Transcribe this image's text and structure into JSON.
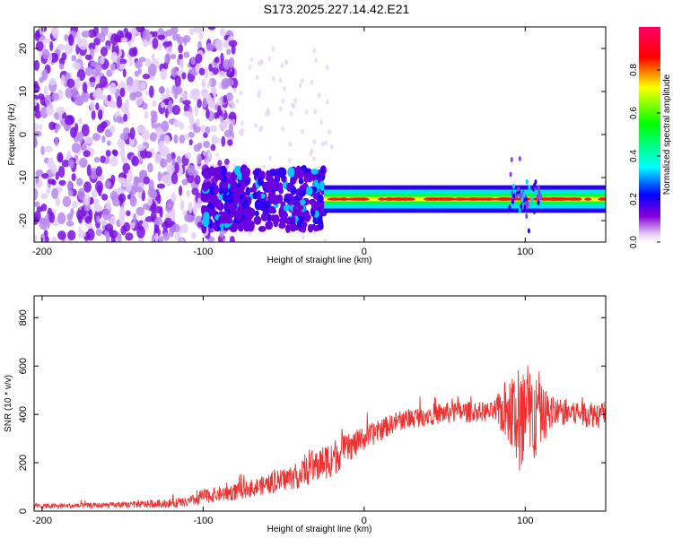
{
  "title": "S173.2025.227.14.42.E21",
  "chart_data": [
    {
      "type": "heatmap",
      "xlabel": "Height of straight line (km)",
      "ylabel": "Frequency (Hz)",
      "xlim": [
        -205,
        150
      ],
      "ylim": [
        -25,
        25
      ],
      "xticks": [
        -200,
        -100,
        0,
        100
      ],
      "yticks": [
        -20,
        -10,
        0,
        10,
        20
      ],
      "colorbar": {
        "label": "Normalized spectral amplitude",
        "range": [
          0,
          1
        ],
        "ticks": [
          "0.0",
          "0.2",
          "0.4",
          "0.6",
          "0.8"
        ]
      },
      "series": [
        {
          "x_range": [
            -205,
            -100
          ],
          "freq_range": [
            -25,
            25
          ],
          "level": 0.12
        },
        {
          "x_range": [
            -100,
            -25
          ],
          "freq_range": [
            -22,
            -8
          ],
          "level": 0.25
        },
        {
          "x_range": [
            -25,
            150
          ],
          "freq_center": -15,
          "freq_halfwidth": 2,
          "level": 0.9
        },
        {
          "x_range": [
            90,
            110
          ],
          "freq_center": -14,
          "freq_halfwidth": 3,
          "level": 0.45
        }
      ],
      "colors": [
        "#ffffff",
        "#d8b8f0",
        "#7b00d6",
        "#0000ff",
        "#00ffff",
        "#00ff00",
        "#ffff00",
        "#ff0000",
        "#ff0066"
      ]
    },
    {
      "type": "line",
      "xlabel": "Height of straight line (km)",
      "ylabel": "SNR (10 * v/v)",
      "xlim": [
        -205,
        150
      ],
      "ylim": [
        0,
        890
      ],
      "xticks": [
        -200,
        -100,
        0,
        100
      ],
      "yticks": [
        0,
        200,
        400,
        600,
        800
      ],
      "color": "#ee3030",
      "trend_x": [
        -205,
        -150,
        -110,
        -100,
        -80,
        -60,
        -40,
        -20,
        -10,
        0,
        20,
        40,
        60,
        80,
        90,
        100,
        110,
        120,
        150
      ],
      "trend_y": [
        20,
        25,
        35,
        60,
        80,
        110,
        150,
        220,
        260,
        300,
        370,
        400,
        410,
        410,
        420,
        350,
        400,
        410,
        400
      ],
      "noise_amp": [
        10,
        12,
        20,
        30,
        35,
        40,
        55,
        80,
        60,
        50,
        40,
        45,
        45,
        40,
        150,
        300,
        120,
        60,
        55
      ]
    }
  ]
}
